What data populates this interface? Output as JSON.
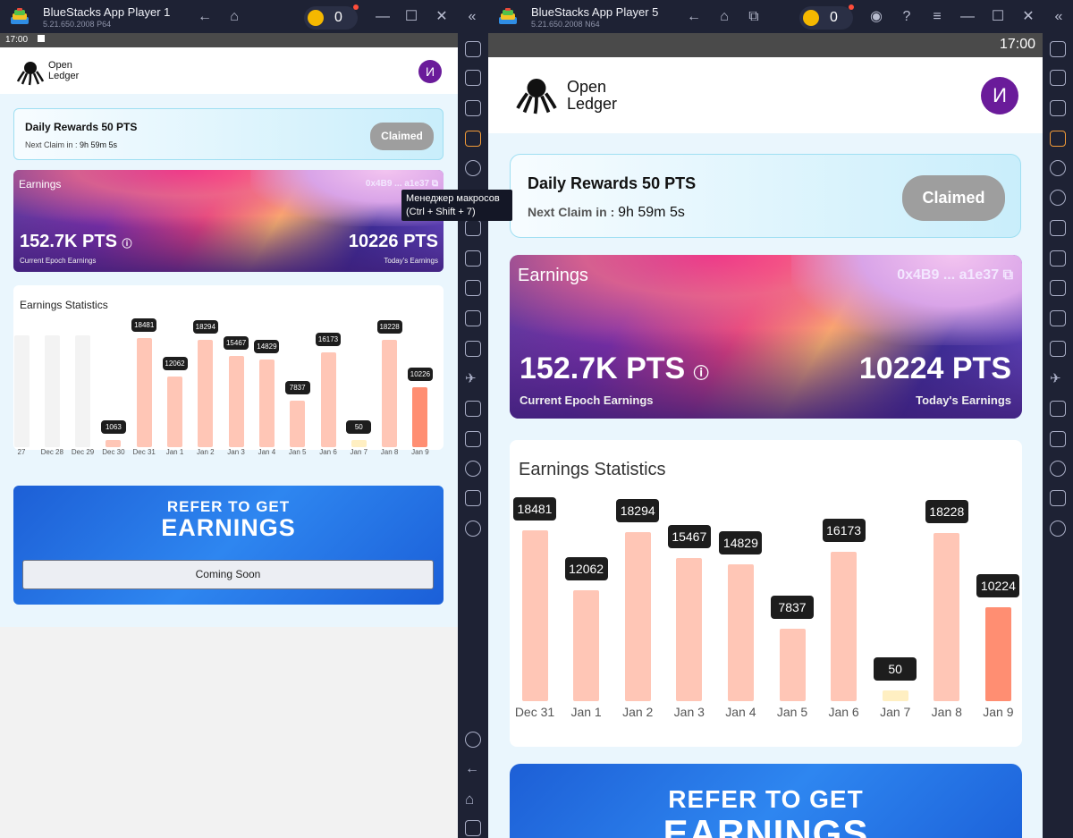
{
  "window1": {
    "title": "BlueStacks App Player 1",
    "version": "5.21.650.2008",
    "arch": "P64",
    "coins": "0",
    "status_time": "17:00"
  },
  "window2": {
    "title": "BlueStacks App Player 5",
    "version": "5.21.650.2008",
    "arch": "N64",
    "coins": "0",
    "status_time": "17:00"
  },
  "tooltip": {
    "line1": "Менеджер макросов",
    "line2": "(Ctrl + Shift + 7)"
  },
  "app": {
    "brand_line1": "Open",
    "brand_line2": "Ledger",
    "avatar": "И",
    "daily_title": "Daily Rewards 50 PTS",
    "next_claim_label": "Next Claim in :",
    "next_claim_value": "9h 59m 5s",
    "claimed_button": "Claimed",
    "earnings_title": "Earnings",
    "wallet": "0x4B9 ... a1e37",
    "epoch_value": "152.7K PTS",
    "epoch_label": "Current Epoch Earnings",
    "today_label": "Today's Earnings",
    "stats_title": "Earnings Statistics",
    "refer_line1": "REFER TO GET",
    "refer_line2": "EARNINGS",
    "coming_soon": "Coming Soon"
  },
  "left_today_value": "10226 PTS",
  "right_today_value": "10224 PTS",
  "chart_data": [
    {
      "type": "bar",
      "title": "Earnings Statistics",
      "categories": [
        "27",
        "Dec 28",
        "Dec 29",
        "Dec 30",
        "Dec 31",
        "Jan 1",
        "Jan 2",
        "Jan 3",
        "Jan 4",
        "Jan 5",
        "Jan 6",
        "Jan 7",
        "Jan 8",
        "Jan 9"
      ],
      "values": [
        null,
        null,
        null,
        1063,
        18481,
        12062,
        18294,
        15467,
        14829,
        7837,
        16173,
        50,
        18228,
        10226
      ],
      "ylim": [
        0,
        19000
      ]
    },
    {
      "type": "bar",
      "title": "Earnings Statistics",
      "categories": [
        "Dec 31",
        "Jan 1",
        "Jan 2",
        "Jan 3",
        "Jan 4",
        "Jan 5",
        "Jan 6",
        "Jan 7",
        "Jan 8",
        "Jan 9"
      ],
      "values": [
        18481,
        12062,
        18294,
        15467,
        14829,
        7837,
        16173,
        50,
        18228,
        10224
      ],
      "ylim": [
        0,
        19000
      ]
    }
  ],
  "colors": {
    "bar": "#ffc6b6",
    "bar_today": "#ff8e72",
    "bar_low": "#ffefc2",
    "bar_empty": "#f3f3f3",
    "avatar": "#6a1b9a"
  }
}
